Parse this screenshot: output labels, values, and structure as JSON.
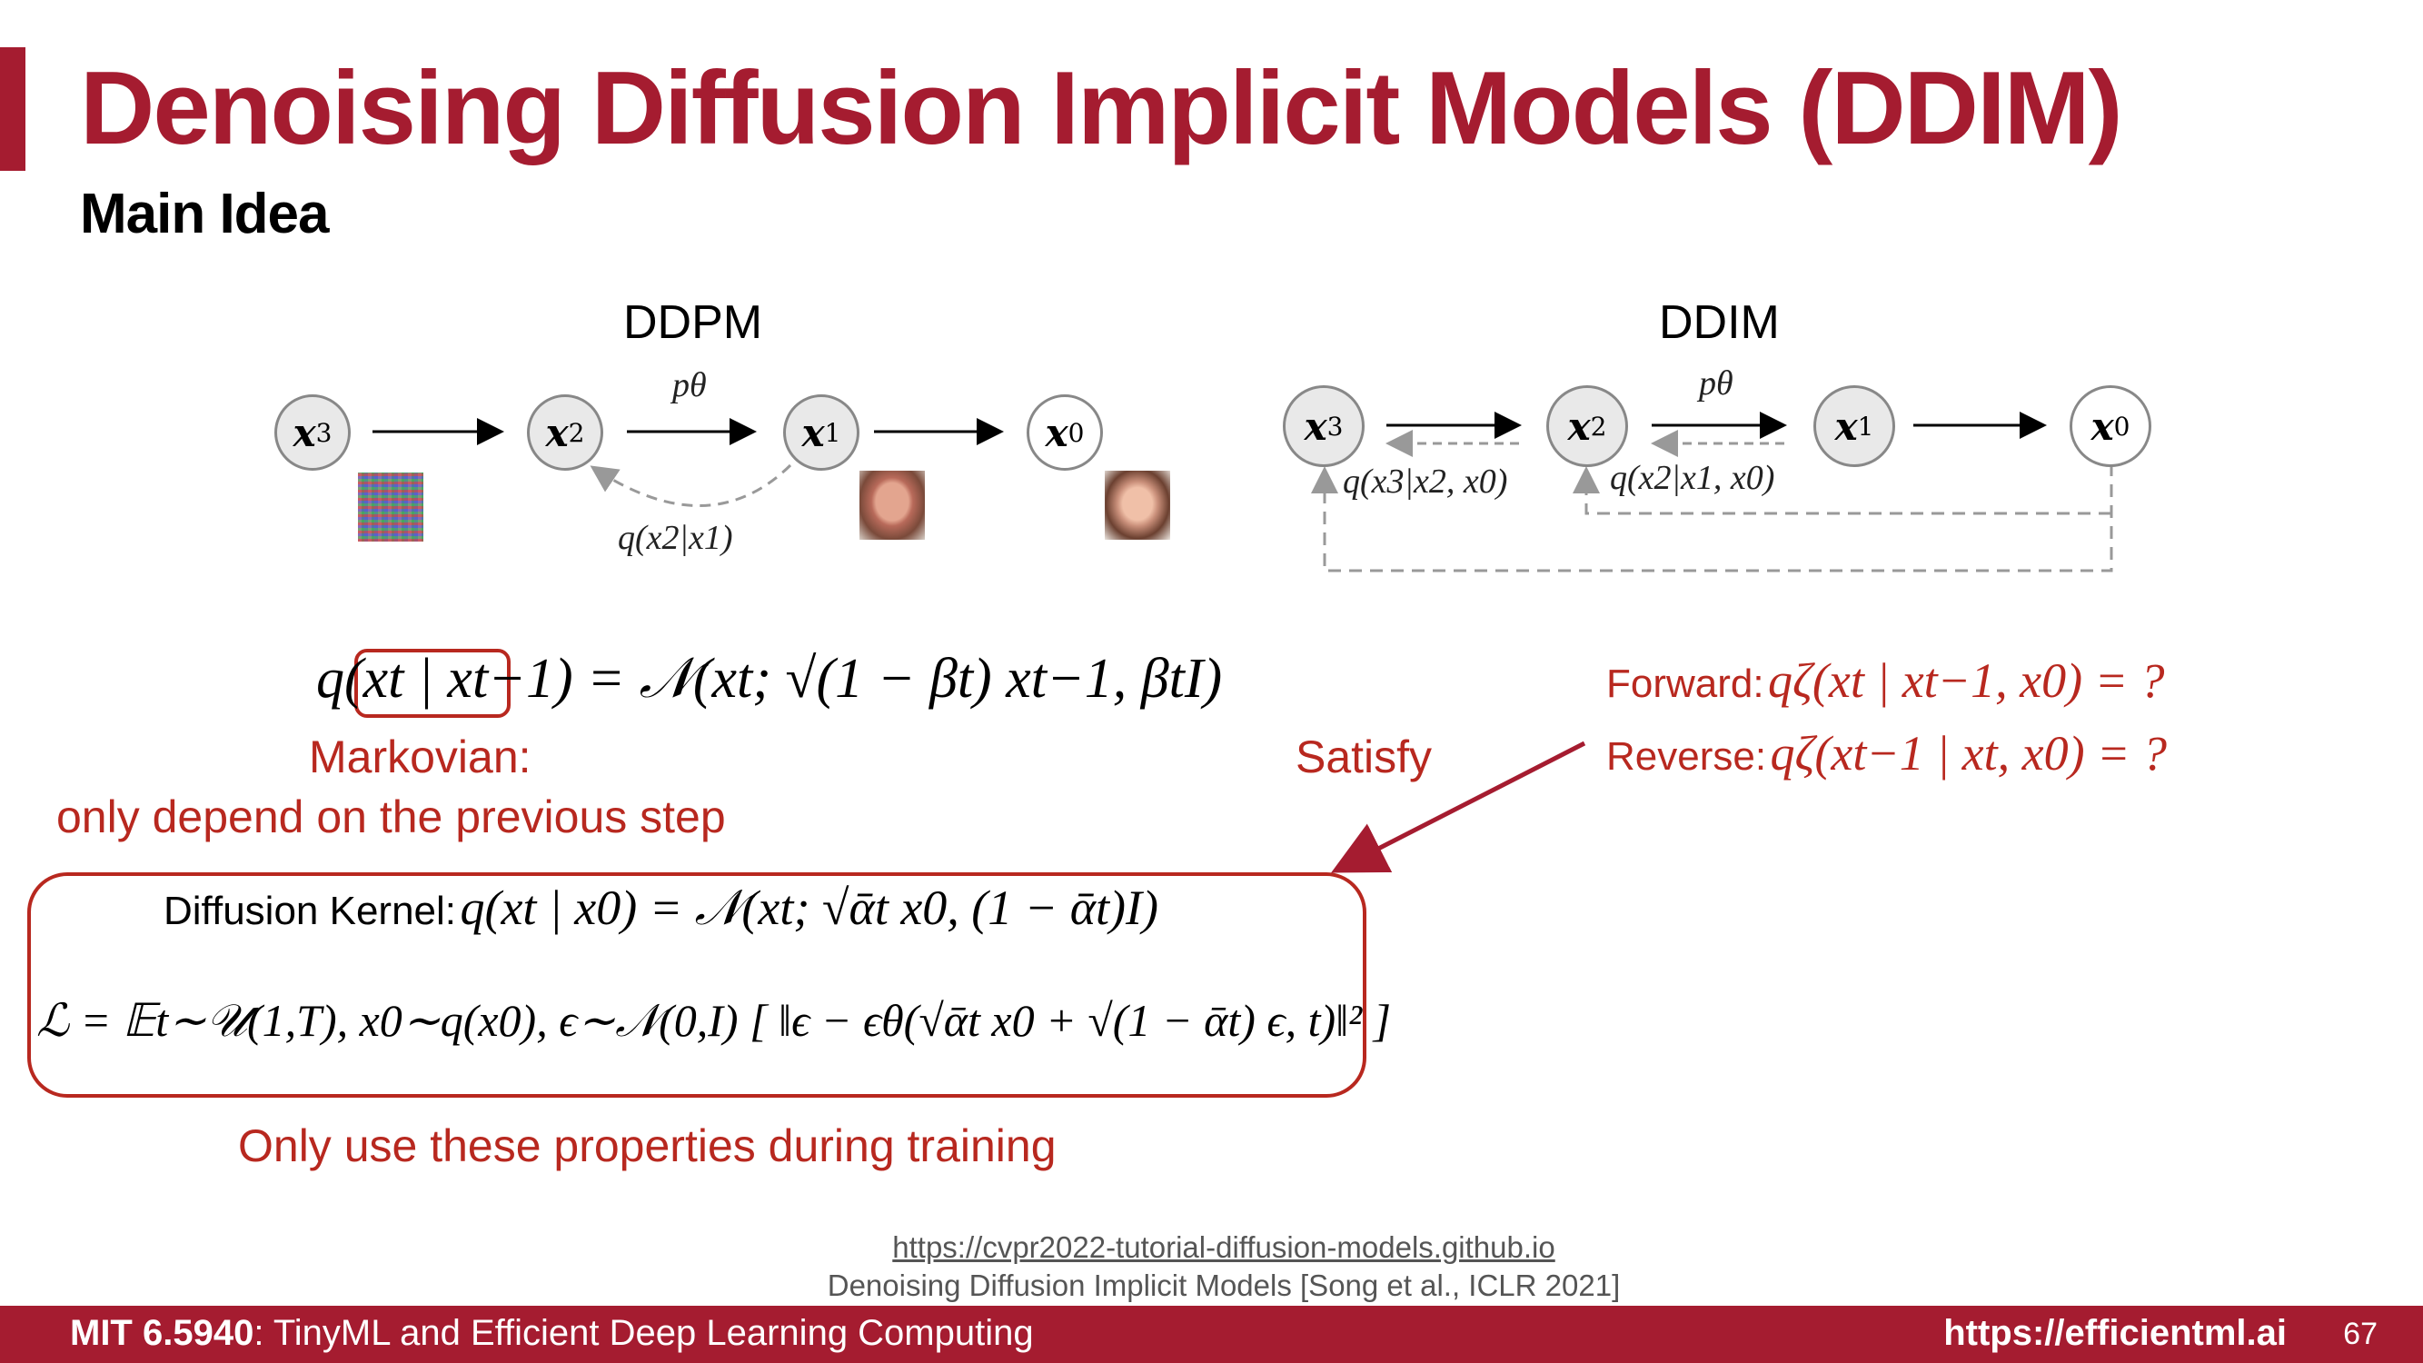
{
  "slide": {
    "title": "Denoising Diffusion Implicit Models (DDIM)",
    "subtitle": "Main Idea"
  },
  "ddpm": {
    "label": "DDPM",
    "nodes": [
      "x3",
      "x2",
      "x1",
      "x0"
    ],
    "edge_label": "pθ",
    "reverse_label": "q(x2|x1)"
  },
  "ddim": {
    "label": "DDIM",
    "nodes": [
      "x3",
      "x2",
      "x1",
      "x0"
    ],
    "edge_label": "pθ",
    "label_q1": "q(x3|x2, x0)",
    "label_q2": "q(x2|x1, x0)"
  },
  "markov": {
    "equation": "q(xt | xt−1) = 𝒩(xt; √(1 − βt) xt−1, βtI)",
    "heading": "Markovian:",
    "desc": "only depend on the previous step"
  },
  "box": {
    "kernel_label": "Diffusion Kernel:",
    "kernel_eq": "q(xt | x0) = 𝒩(xt; √ᾱt x0, (1 − ᾱt)I)",
    "loss_eq": "ℒ = 𝔼t∼𝒰(1,T), x0∼q(x0), ϵ∼𝒩(0,I) [ ‖ϵ − ϵθ(√ᾱt x0 + √(1 − ᾱt) ϵ, t)‖² ]",
    "note": "Only use these properties during training"
  },
  "satisfy": "Satisfy",
  "forward": {
    "label": "Forward:",
    "eq": "qζ(xt | xt−1, x0) = ?"
  },
  "reverse": {
    "label": "Reverse:",
    "eq": "qζ(xt−1 | xt, x0) = ?"
  },
  "citation": {
    "url": "https://cvpr2022-tutorial-diffusion-models.github.io",
    "paper": "Denoising Diffusion Implicit Models [Song et al., ICLR 2021]"
  },
  "footer": {
    "course_bold": "MIT 6.5940",
    "course_rest": ": TinyML and Efficient Deep Learning Computing",
    "site": "https://efficientml.ai",
    "page": "67"
  },
  "colors": {
    "accent": "#a51c30",
    "annotation_red": "#b8281f"
  }
}
